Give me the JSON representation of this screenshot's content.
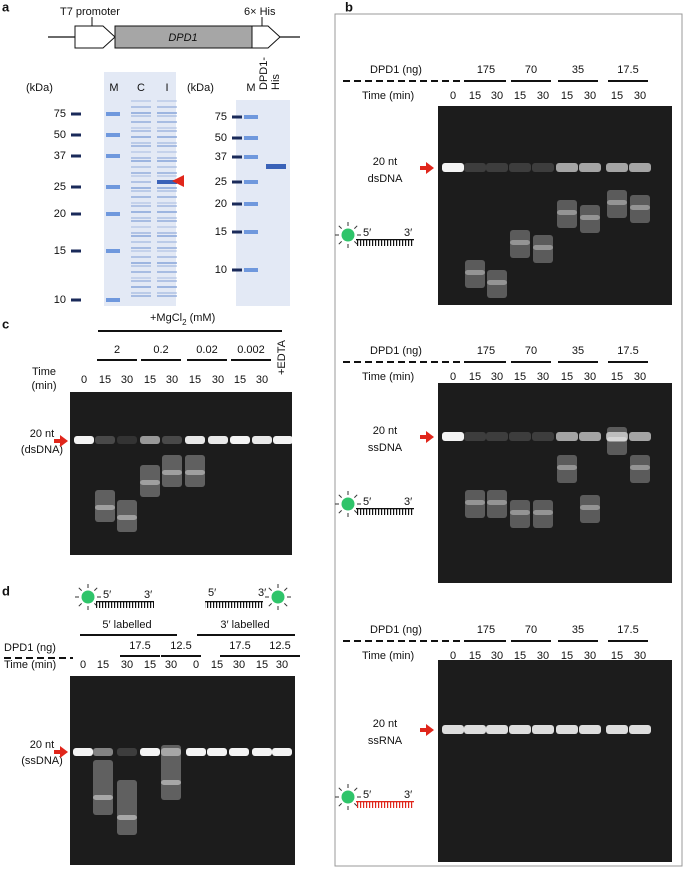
{
  "panel_a": {
    "label": "a",
    "construct": {
      "promoter": "T7 promoter",
      "tag": "6× His",
      "gene": "DPD1"
    },
    "gel_1": {
      "unit": "(kDa)",
      "lanes": [
        "M",
        "C",
        "I"
      ],
      "markers": [
        "75",
        "50",
        "37",
        "25",
        "20",
        "15",
        "10"
      ]
    },
    "gel_2": {
      "unit": "(kDa)",
      "lanes": [
        "M"
      ],
      "sample_lines": [
        "DPD1-",
        "His"
      ],
      "markers": [
        "75",
        "50",
        "37",
        "25",
        "20",
        "15",
        "10"
      ]
    }
  },
  "panel_b": {
    "label": "b",
    "blots": [
      {
        "dose_label": "DPD1 (ng)",
        "doses": [
          "175",
          "70",
          "35",
          "17.5"
        ],
        "time_label": "Time (min)",
        "times": [
          "0",
          "15",
          "30",
          "15",
          "30",
          "15",
          "30",
          "15",
          "30"
        ],
        "size": "20 nt",
        "substrate": "dsDNA",
        "ends": [
          "5′",
          "3′"
        ]
      },
      {
        "dose_label": "DPD1 (ng)",
        "doses": [
          "175",
          "70",
          "35",
          "17.5"
        ],
        "time_label": "Time (min)",
        "times": [
          "0",
          "15",
          "30",
          "15",
          "30",
          "15",
          "30",
          "15",
          "30"
        ],
        "size": "20 nt",
        "substrate": "ssDNA",
        "ends": [
          "5′",
          "3′"
        ]
      },
      {
        "dose_label": "DPD1 (ng)",
        "doses": [
          "175",
          "70",
          "35",
          "17.5"
        ],
        "time_label": "Time (min)",
        "times": [
          "0",
          "15",
          "30",
          "15",
          "30",
          "15",
          "30",
          "15",
          "30"
        ],
        "size": "20 nt",
        "substrate": "ssRNA",
        "ends": [
          "5′",
          "3′"
        ]
      }
    ]
  },
  "panel_c": {
    "label": "c",
    "condition": {
      "prefix": "+MgCl",
      "subscript": "2",
      "unit": " (mM)"
    },
    "concentrations": [
      "2",
      "0.2",
      "0.02",
      "0.002"
    ],
    "control": "+EDTA",
    "time_lines": [
      "Time",
      "(min)"
    ],
    "times": [
      "0",
      "15",
      "30",
      "15",
      "30",
      "15",
      "30",
      "15",
      "30"
    ],
    "size": "20 nt",
    "substrate": "(dsDNA)"
  },
  "panel_d": {
    "label": "d",
    "probes": [
      {
        "ends": [
          "5′",
          "3′"
        ],
        "name": "5′ labelled"
      },
      {
        "ends": [
          "5′",
          "3′"
        ],
        "name": "3′ labelled"
      }
    ],
    "dose_label": "DPD1 (ng)",
    "doses": [
      "17.5",
      "12.5",
      "17.5",
      "12.5"
    ],
    "time_label": "Time (min)",
    "times": [
      "0",
      "15",
      "30",
      "15",
      "30",
      "0",
      "15",
      "30",
      "15",
      "30"
    ],
    "size": "20 nt",
    "substrate": "(ssDNA)"
  }
}
